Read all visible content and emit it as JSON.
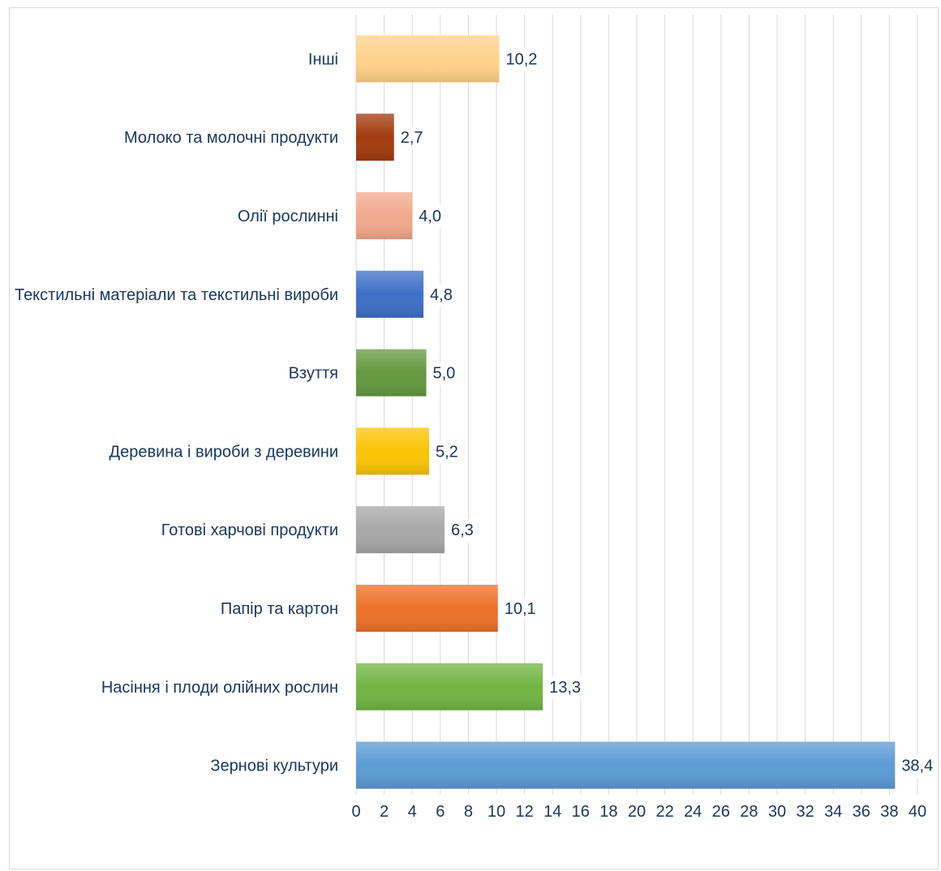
{
  "chart_data": {
    "type": "bar",
    "orientation": "horizontal",
    "categories": [
      "Інші",
      "Молоко та молочні продукти",
      "Олії рослинні",
      "Текстильні матеріали та текстильні вироби",
      "Взуття",
      "Деревина і вироби з деревини",
      "Готові харчові продукти",
      "Папір та картон",
      "Насіння і плоди олійних рослин",
      "Зернові культури"
    ],
    "values": [
      10.2,
      2.7,
      4.0,
      4.8,
      5.0,
      5.2,
      6.3,
      10.1,
      13.3,
      38.4
    ],
    "value_labels": [
      "10,2",
      "2,7",
      "4,0",
      "4,8",
      "5,0",
      "5,2",
      "6,3",
      "10,1",
      "13,3",
      "38,4"
    ],
    "colors": [
      "#ffd28a",
      "#a33b0e",
      "#f2a98d",
      "#3e6fc8",
      "#64993f",
      "#fbc403",
      "#a8a8a8",
      "#ee7128",
      "#72b542",
      "#5b9bd5"
    ],
    "xlim": [
      0,
      40
    ],
    "x_ticks": [
      0,
      2,
      4,
      6,
      8,
      10,
      12,
      14,
      16,
      18,
      20,
      22,
      24,
      26,
      28,
      30,
      32,
      34,
      36,
      38,
      40
    ],
    "grid": true,
    "legend": "none",
    "title": "",
    "xlabel": "",
    "ylabel": ""
  }
}
